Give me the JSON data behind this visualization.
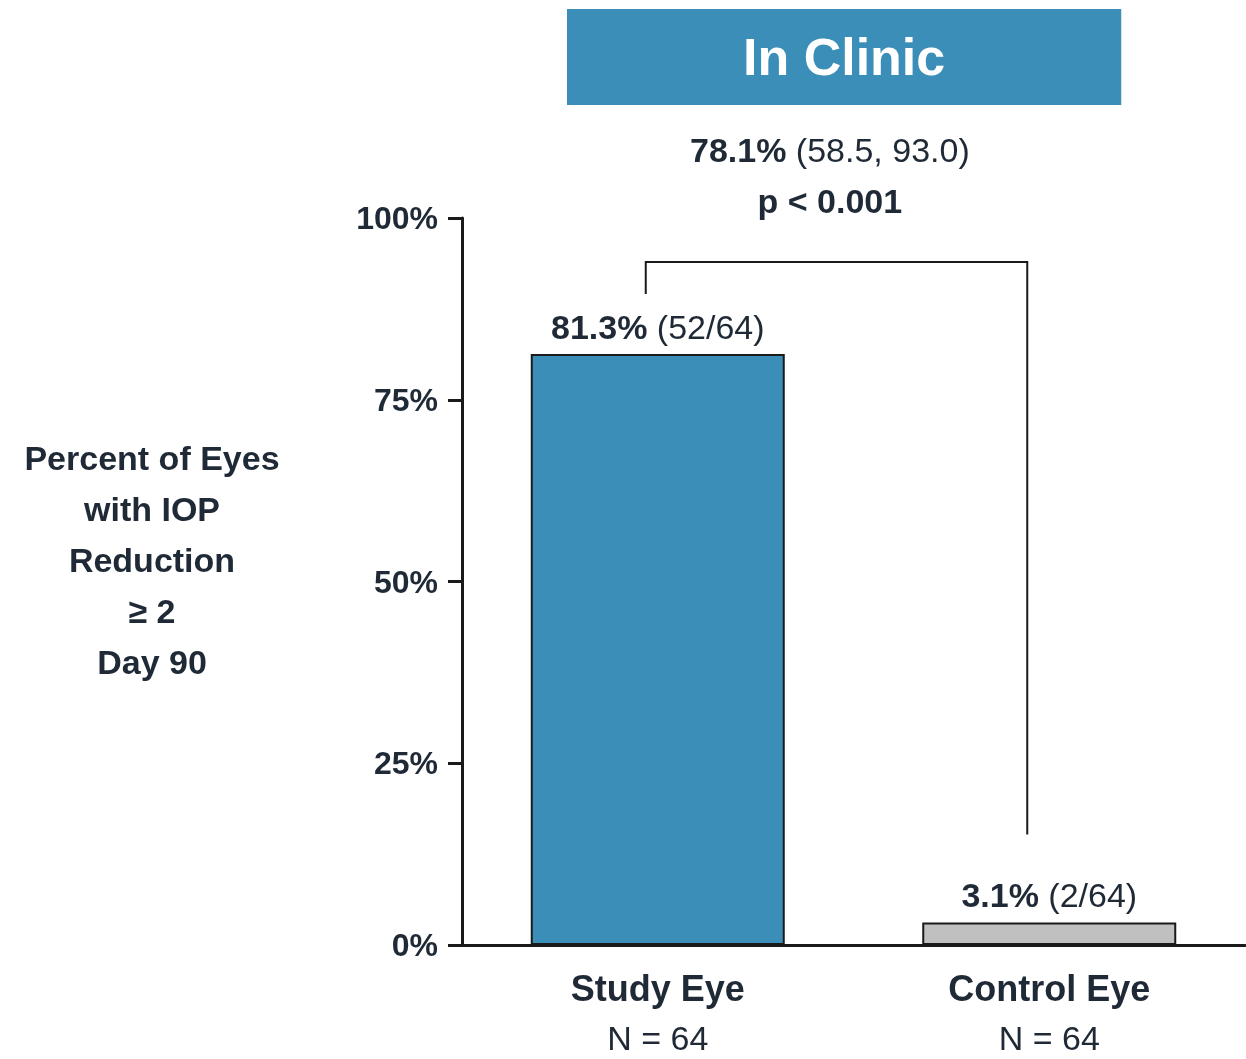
{
  "chart_data": {
    "type": "bar",
    "title": "In Clinic",
    "ylabel": "Percent of Eyes\nwith IOP\nReduction\n≥ 2\nDay 90",
    "categories": [
      "Study Eye\nN = 64",
      "Control Eye\nN = 64"
    ],
    "values": [
      81.3,
      3.1
    ],
    "colors": [
      "#3b8eb8",
      "#c0c0c0"
    ],
    "value_labels": [
      "81.3% (52/64)",
      "3.1% (2/64)"
    ],
    "annotations": [
      "78.1% (58.5, 93.0)\np < 0.001"
    ],
    "ylim": [
      0,
      100
    ],
    "yticks": [
      {
        "value": 0,
        "label": "0%"
      },
      {
        "value": 25,
        "label": "25%"
      },
      {
        "value": 50,
        "label": "50%"
      },
      {
        "value": 75,
        "label": "75%"
      },
      {
        "value": 100,
        "label": "100%"
      }
    ],
    "grid": false
  }
}
